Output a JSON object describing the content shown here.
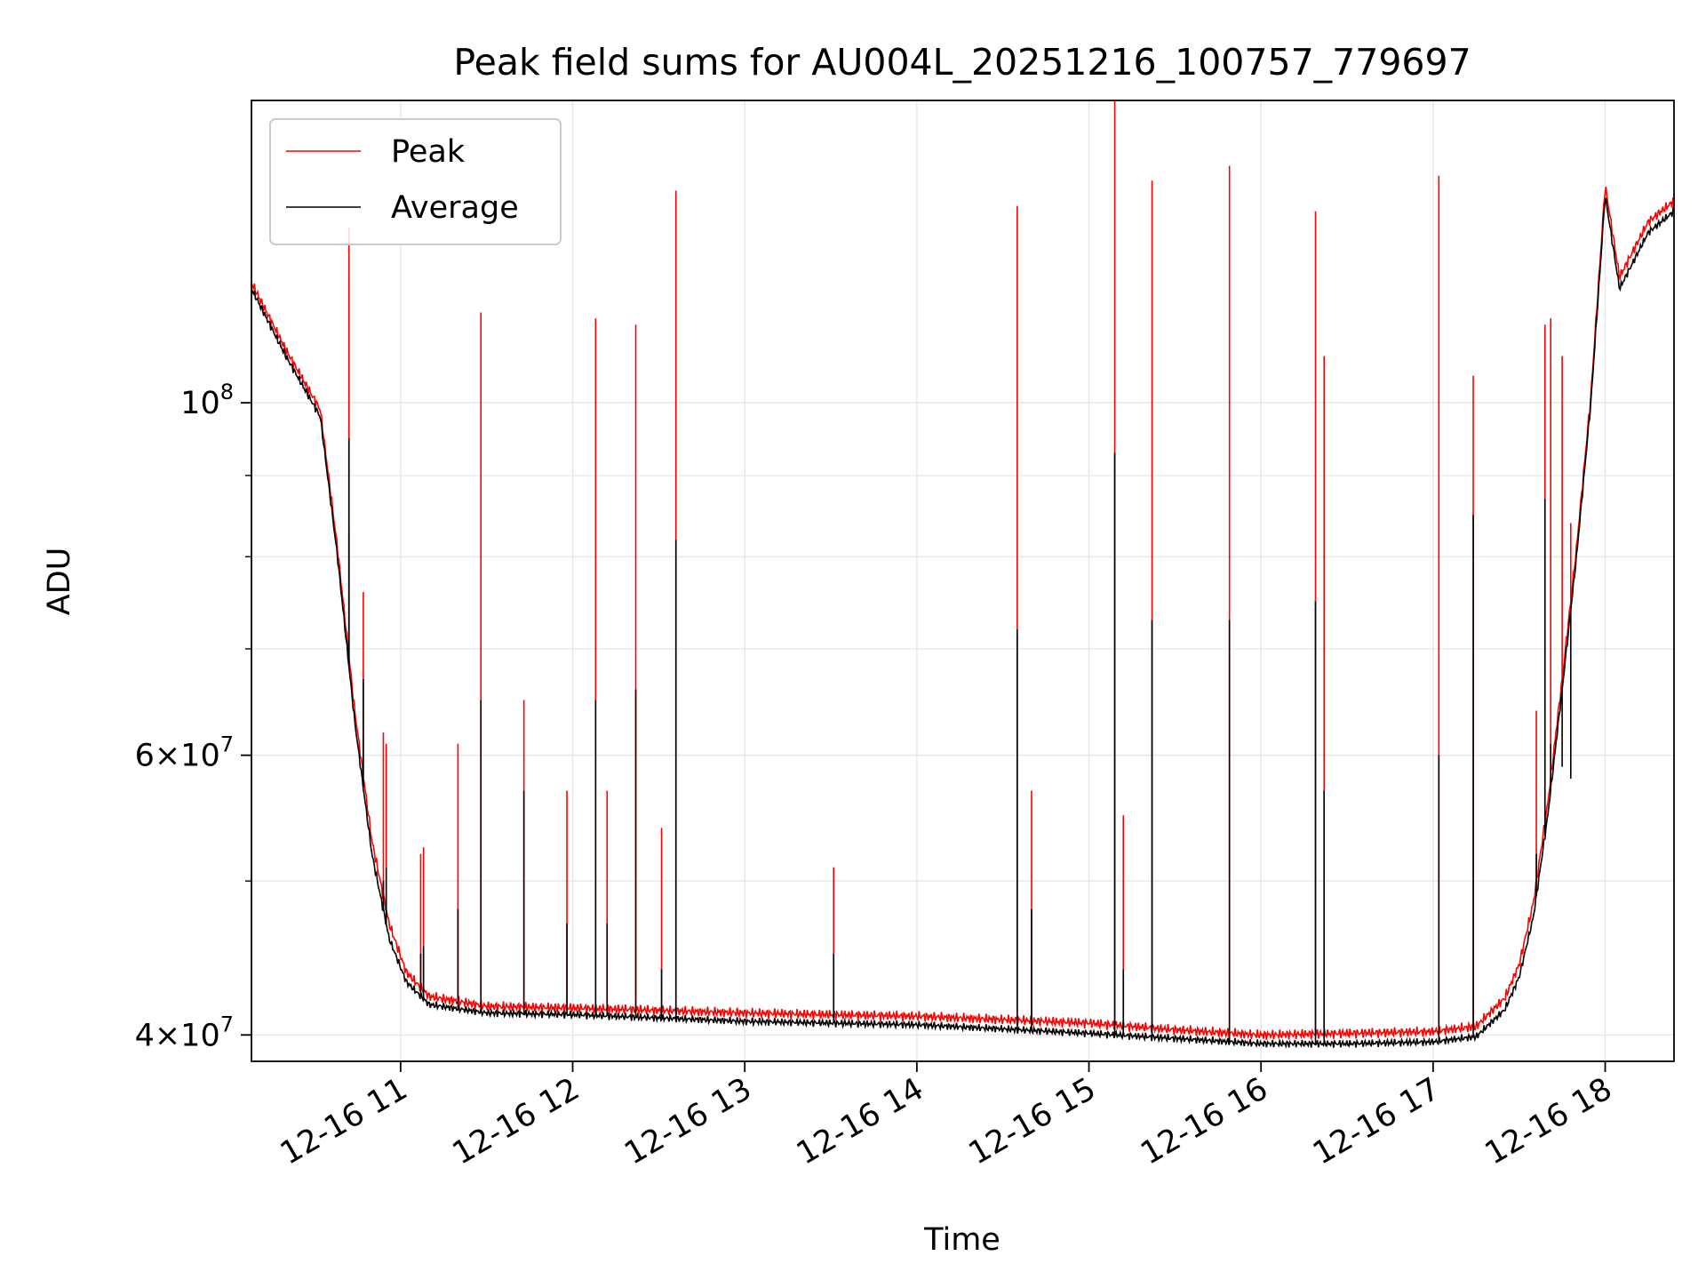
{
  "chart_data": {
    "type": "line",
    "title": "Peak field sums for AU004L_20251216_100757_779697",
    "xlabel": "Time",
    "ylabel": "ADU",
    "yscale": "log",
    "xlim": [
      "2025-12-16 10:08",
      "2025-12-16 18:24"
    ],
    "ylim": [
      38500000,
      155000000
    ],
    "x_ticks": [
      "12-16 11",
      "12-16 12",
      "12-16 13",
      "12-16 14",
      "12-16 15",
      "12-16 16",
      "12-16 17",
      "12-16 18"
    ],
    "y_ticks": [
      {
        "value": 40000000,
        "mantissa": "4",
        "times": "×",
        "base": "10",
        "exp": "7"
      },
      {
        "value": 60000000,
        "mantissa": "6",
        "times": "×",
        "base": "10",
        "exp": "7"
      },
      {
        "value": 100000000,
        "mantissa": "",
        "times": "",
        "base": "10",
        "exp": "8"
      }
    ],
    "grid": true,
    "legend_position": "top-left",
    "series": [
      {
        "name": "Peak",
        "color": "#ff0000",
        "role": "peak"
      },
      {
        "name": "Average",
        "color": "#000000",
        "role": "average"
      }
    ],
    "baseline": {
      "x": [
        "2025-12-16 10:08",
        "2025-12-16 10:20",
        "2025-12-16 10:32",
        "2025-12-16 10:38",
        "2025-12-16 10:44",
        "2025-12-16 10:50",
        "2025-12-16 10:56",
        "2025-12-16 11:02",
        "2025-12-16 11:10",
        "2025-12-16 11:30",
        "2025-12-16 12:00",
        "2025-12-16 13:00",
        "2025-12-16 14:00",
        "2025-12-16 15:00",
        "2025-12-16 15:30",
        "2025-12-16 16:00",
        "2025-12-16 16:30",
        "2025-12-16 17:00",
        "2025-12-16 17:15",
        "2025-12-16 17:25",
        "2025-12-16 17:30",
        "2025-12-16 17:35",
        "2025-12-16 17:40",
        "2025-12-16 17:45",
        "2025-12-16 17:50",
        "2025-12-16 17:55",
        "2025-12-16 18:00",
        "2025-12-16 18:05",
        "2025-12-16 18:15",
        "2025-12-16 18:24"
      ],
      "average": [
        118000000,
        107000000,
        98000000,
        80000000,
        63000000,
        52000000,
        46000000,
        43200000,
        41800000,
        41300000,
        41200000,
        40800000,
        40600000,
        40100000,
        39800000,
        39500000,
        39500000,
        39600000,
        39900000,
        41500000,
        43500000,
        47500000,
        55000000,
        66000000,
        80000000,
        100000000,
        135000000,
        118000000,
        128000000,
        132000000
      ],
      "peak": [
        119000000,
        108000000,
        99000000,
        81000000,
        64000000,
        53000000,
        47000000,
        43800000,
        42300000,
        41700000,
        41600000,
        41300000,
        41100000,
        40700000,
        40300000,
        40000000,
        40100000,
        40200000,
        40500000,
        42200000,
        44300000,
        48500000,
        56000000,
        67000000,
        81000000,
        101000000,
        137000000,
        120000000,
        130000000,
        134000000
      ]
    },
    "spikes": {
      "x": [
        "2025-12-16 10:42",
        "2025-12-16 10:42",
        "2025-12-16 10:47",
        "2025-12-16 10:54",
        "2025-12-16 10:55",
        "2025-12-16 11:07",
        "2025-12-16 11:08",
        "2025-12-16 11:20",
        "2025-12-16 11:28",
        "2025-12-16 11:43",
        "2025-12-16 11:58",
        "2025-12-16 12:08",
        "2025-12-16 12:12",
        "2025-12-16 12:22",
        "2025-12-16 12:31",
        "2025-12-16 12:36",
        "2025-12-16 13:31",
        "2025-12-16 14:35",
        "2025-12-16 14:40",
        "2025-12-16 15:09",
        "2025-12-16 15:12",
        "2025-12-16 15:22",
        "2025-12-16 15:49",
        "2025-12-16 16:19",
        "2025-12-16 16:22",
        "2025-12-16 17:02",
        "2025-12-16 17:14",
        "2025-12-16 17:36",
        "2025-12-16 17:39",
        "2025-12-16 17:41",
        "2025-12-16 17:45",
        "2025-12-16 17:48"
      ],
      "peak": [
        129000000,
        120000000,
        76000000,
        62000000,
        61000000,
        52000000,
        52500000,
        61000000,
        114000000,
        65000000,
        57000000,
        113000000,
        57000000,
        112000000,
        54000000,
        136000000,
        51000000,
        133000000,
        57000000,
        155000000,
        55000000,
        138000000,
        141000000,
        132000000,
        107000000,
        139000000,
        104000000,
        64000000,
        112000000,
        113000000,
        107000000,
        84000000
      ],
      "average": [
        95000000,
        83000000,
        67000000,
        50000000,
        51000000,
        45000000,
        45500000,
        48000000,
        65000000,
        57000000,
        47000000,
        65000000,
        47000000,
        66000000,
        44000000,
        82000000,
        45000000,
        72000000,
        48000000,
        93000000,
        44000000,
        73000000,
        73000000,
        75000000,
        57000000,
        60000000,
        85000000,
        52000000,
        87000000,
        61000000,
        59000000,
        58000000
      ]
    }
  }
}
